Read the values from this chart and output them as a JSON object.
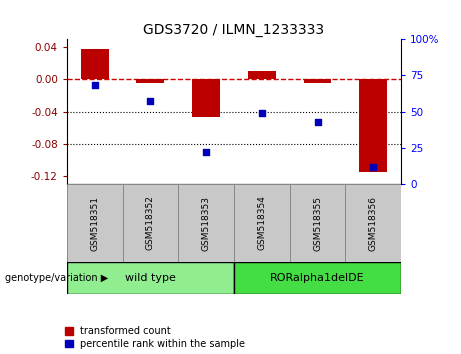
{
  "title": "GDS3720 / ILMN_1233333",
  "samples": [
    "GSM518351",
    "GSM518352",
    "GSM518353",
    "GSM518354",
    "GSM518355",
    "GSM518356"
  ],
  "bar_values": [
    0.038,
    -0.005,
    -0.047,
    0.01,
    -0.005,
    -0.115
  ],
  "percentile_values": [
    68,
    57,
    22,
    49,
    43,
    12
  ],
  "groups": [
    {
      "label": "wild type",
      "samples": [
        0,
        1,
        2
      ],
      "color": "#90EE90"
    },
    {
      "label": "RORalpha1delDE",
      "samples": [
        3,
        4,
        5
      ],
      "color": "#44DD44"
    }
  ],
  "bar_color": "#BB0000",
  "dot_color": "#0000BB",
  "left_ylim": [
    -0.13,
    0.05
  ],
  "right_ylim": [
    0,
    100
  ],
  "left_yticks": [
    -0.12,
    -0.08,
    -0.04,
    0.0,
    0.04
  ],
  "right_yticks": [
    0,
    25,
    50,
    75,
    100
  ],
  "hline_color": "#CC0000",
  "dotted_lines": [
    -0.04,
    -0.08
  ],
  "background_color": "#ffffff",
  "legend_items": [
    "transformed count",
    "percentile rank within the sample"
  ],
  "genotype_label": "genotype/variation",
  "sample_bg_color": "#C8C8C8",
  "sample_border_color": "#888888"
}
